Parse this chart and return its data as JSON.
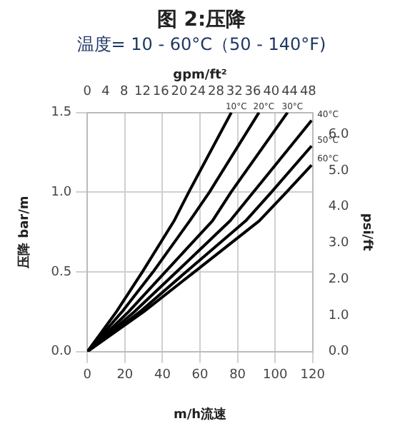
{
  "chart_data": {
    "type": "line",
    "title": "图 2:压降",
    "subtitle": "温度= 10 - 60°C（50 - 140°F)",
    "xlabel": "m/h流速",
    "ylabel": "压降 bar/m",
    "y2label": "psi/ft",
    "x2label": "gpm/ft²",
    "xlim": [
      0,
      120
    ],
    "xticks": [
      0,
      20,
      40,
      60,
      80,
      100,
      120
    ],
    "ylim": [
      0,
      1.5
    ],
    "yticks": [
      {
        "value": 0,
        "label": "0.0"
      },
      0.5,
      {
        "value": 1,
        "label": "1.0"
      },
      1.5
    ],
    "y2lim": [
      0,
      6.6
    ],
    "y2ticks": [
      {
        "value": 0,
        "label": "0.0"
      },
      {
        "value": 1,
        "label": "1.0"
      },
      {
        "value": 2,
        "label": "2.0"
      },
      {
        "value": 3,
        "label": "3.0"
      },
      {
        "value": 4,
        "label": "4.0"
      },
      {
        "value": 5,
        "label": "5.0"
      },
      {
        "value": 6,
        "label": "6.0"
      }
    ],
    "x2lim": [
      0,
      49
    ],
    "x2ticks": [
      0,
      4,
      8,
      12,
      16,
      20,
      24,
      28,
      32,
      36,
      40,
      44,
      48
    ],
    "grid": true,
    "legend": false,
    "marker": "none",
    "line_style": "solid",
    "series": [
      {
        "color": "#000000",
        "x": [
          0,
          15.5,
          29.3,
          46.2,
          54,
          76.7
        ],
        "values": [
          0,
          0.25,
          0.5,
          0.82,
          1.0,
          1.5
        ]
      },
      {
        "color": "#000000",
        "x": [
          0,
          18.5,
          35,
          54.5,
          65,
          91.4
        ],
        "values": [
          0,
          0.25,
          0.5,
          0.82,
          1.0,
          1.5
        ]
      },
      {
        "color": "#000000",
        "x": [
          0,
          22,
          41.5,
          66.6,
          76.5,
          106.6
        ],
        "values": [
          0,
          0.25,
          0.5,
          0.82,
          1.0,
          1.5
        ]
      },
      {
        "color": "#000000",
        "x": [
          0,
          25,
          47.5,
          76,
          88.4,
          119.4
        ],
        "values": [
          0,
          0.25,
          0.5,
          0.82,
          1.0,
          1.45
        ]
      },
      {
        "color": "#000000",
        "x": [
          0,
          28,
          52.6,
          84.3,
          98,
          119.4
        ],
        "values": [
          0,
          0.25,
          0.5,
          0.82,
          1.0,
          1.29
        ]
      },
      {
        "color": "#000000",
        "x": [
          0,
          30,
          57,
          91.5,
          106,
          119.4
        ],
        "values": [
          0,
          0.25,
          0.5,
          0.82,
          1.0,
          1.17
        ]
      }
    ],
    "annotations": [
      {
        "text": "10°C",
        "x": 76.7,
        "y": 1.5
      },
      {
        "text": "20°C",
        "x": 91.4,
        "y": 1.5
      },
      {
        "text": "30°C",
        "x": 106.6,
        "y": 1.5
      },
      {
        "text": "40°C",
        "x": 119.4,
        "y": 1.45
      },
      {
        "text": "50°C",
        "x": 119.4,
        "y": 1.29
      },
      {
        "text": "60°C",
        "x": 119.4,
        "y": 1.17
      }
    ]
  }
}
